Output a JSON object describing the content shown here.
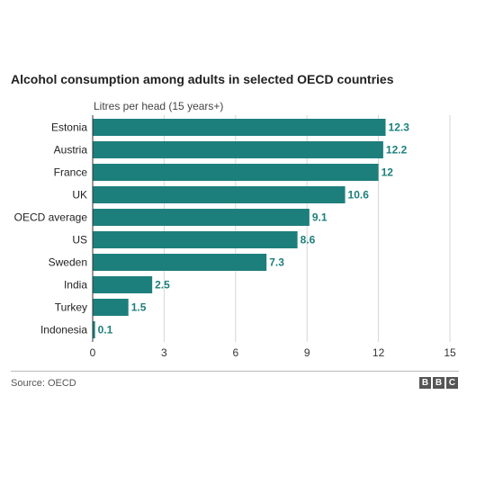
{
  "chart_data": {
    "type": "bar",
    "orientation": "horizontal",
    "title": "Alcohol consumption among adults in selected OECD countries",
    "subtitle": "Litres per head (15 years+)",
    "categories": [
      "Estonia",
      "Austria",
      "France",
      "UK",
      "OECD average",
      "US",
      "Sweden",
      "India",
      "Turkey",
      "Indonesia"
    ],
    "values": [
      12.3,
      12.2,
      12,
      10.6,
      9.1,
      8.6,
      7.3,
      2.5,
      1.5,
      0.1
    ],
    "value_labels": [
      "12.3",
      "12.2",
      "12",
      "10.6",
      "9.1",
      "8.6",
      "7.3",
      "2.5",
      "1.5",
      "0.1"
    ],
    "xlim": [
      0,
      15
    ],
    "xticks": [
      0,
      3,
      6,
      9,
      12,
      15
    ],
    "xtick_labels": [
      "0",
      "3",
      "6",
      "9",
      "12",
      "15"
    ],
    "grid": true,
    "bar_color": "#1d7f7c"
  },
  "footer": {
    "source": "Source: OECD",
    "logo": [
      "B",
      "B",
      "C"
    ]
  }
}
